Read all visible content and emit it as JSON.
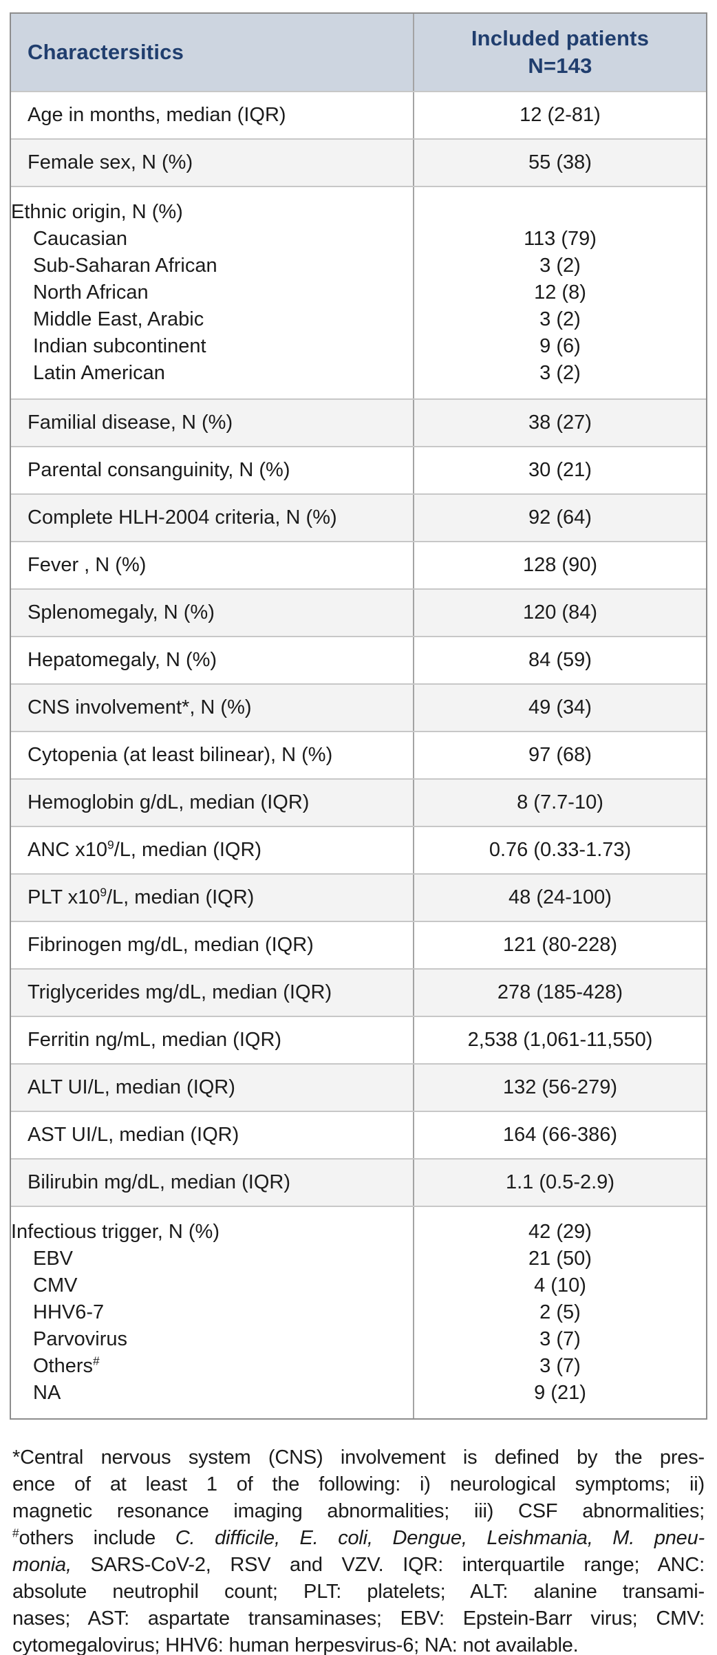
{
  "colors": {
    "header_bg": "#cdd5e0",
    "header_text": "#203e6e",
    "row_alt_bg": "#f3f3f3",
    "border_outer": "#8d8d8d",
    "border_row": "#c7c7c7",
    "border_divider": "#a3a3a3",
    "text": "#1b1b1b"
  },
  "header": {
    "col1": "Charactersitics",
    "col2_line1": "Included patients",
    "col2_line2": "N=143"
  },
  "table": {
    "rows": [
      {
        "lines": [
          {
            "label": [
              {
                "t": "Age in months, median (IQR)"
              }
            ],
            "value": "12 (2-81)",
            "indent": false
          }
        ]
      },
      {
        "lines": [
          {
            "label": [
              {
                "t": "Female sex, N (%)"
              }
            ],
            "value": "55 (38)",
            "indent": false
          }
        ]
      },
      {
        "lines": [
          {
            "label": [
              {
                "t": "Ethnic origin, N (%)"
              }
            ],
            "value": "",
            "indent": false
          },
          {
            "label": [
              {
                "t": "Caucasian"
              }
            ],
            "value": "113 (79)",
            "indent": true
          },
          {
            "label": [
              {
                "t": "Sub-Saharan African"
              }
            ],
            "value": "3 (2)",
            "indent": true
          },
          {
            "label": [
              {
                "t": "North African"
              }
            ],
            "value": "12 (8)",
            "indent": true
          },
          {
            "label": [
              {
                "t": "Middle East, Arabic"
              }
            ],
            "value": "3 (2)",
            "indent": true
          },
          {
            "label": [
              {
                "t": "Indian subcontinent"
              }
            ],
            "value": "9 (6)",
            "indent": true
          },
          {
            "label": [
              {
                "t": "Latin American"
              }
            ],
            "value": "3 (2)",
            "indent": true
          }
        ]
      },
      {
        "lines": [
          {
            "label": [
              {
                "t": "Familial disease, N (%)"
              }
            ],
            "value": "38 (27)",
            "indent": false
          }
        ]
      },
      {
        "lines": [
          {
            "label": [
              {
                "t": "Parental consanguinity, N (%)"
              }
            ],
            "value": "30 (21)",
            "indent": false
          }
        ]
      },
      {
        "lines": [
          {
            "label": [
              {
                "t": "Complete HLH-2004 criteria, N (%)"
              }
            ],
            "value": "92 (64)",
            "indent": false
          }
        ]
      },
      {
        "lines": [
          {
            "label": [
              {
                "t": "Fever , N (%)"
              }
            ],
            "value": "128 (90)",
            "indent": false
          }
        ]
      },
      {
        "lines": [
          {
            "label": [
              {
                "t": "Splenomegaly, N (%)"
              }
            ],
            "value": "120 (84)",
            "indent": false
          }
        ]
      },
      {
        "lines": [
          {
            "label": [
              {
                "t": "Hepatomegaly, N (%)"
              }
            ],
            "value": "84 (59)",
            "indent": false
          }
        ]
      },
      {
        "lines": [
          {
            "label": [
              {
                "t": "CNS involvement*, N (%)"
              }
            ],
            "value": "49 (34)",
            "indent": false
          }
        ]
      },
      {
        "lines": [
          {
            "label": [
              {
                "t": "Cytopenia (at least bilinear), N (%)"
              }
            ],
            "value": "97 (68)",
            "indent": false
          }
        ]
      },
      {
        "lines": [
          {
            "label": [
              {
                "t": "Hemoglobin g/dL, median (IQR)"
              }
            ],
            "value": "8 (7.7-10)",
            "indent": false
          }
        ]
      },
      {
        "lines": [
          {
            "label": [
              {
                "t": "ANC x10"
              },
              {
                "t": "9",
                "s": "sup"
              },
              {
                "t": "/L, median (IQR)"
              }
            ],
            "value": "0.76 (0.33-1.73)",
            "indent": false
          }
        ]
      },
      {
        "lines": [
          {
            "label": [
              {
                "t": "PLT x10"
              },
              {
                "t": "9",
                "s": "sup"
              },
              {
                "t": "/L, median (IQR)"
              }
            ],
            "value": "48 (24-100)",
            "indent": false
          }
        ]
      },
      {
        "lines": [
          {
            "label": [
              {
                "t": "Fibrinogen mg/dL, median (IQR)"
              }
            ],
            "value": "121 (80-228)",
            "indent": false
          }
        ]
      },
      {
        "lines": [
          {
            "label": [
              {
                "t": "Triglycerides mg/dL, median (IQR)"
              }
            ],
            "value": "278 (185-428)",
            "indent": false
          }
        ]
      },
      {
        "lines": [
          {
            "label": [
              {
                "t": "Ferritin ng/mL, median (IQR)"
              }
            ],
            "value": "2,538 (1,061-11,550)",
            "indent": false
          }
        ]
      },
      {
        "lines": [
          {
            "label": [
              {
                "t": "ALT UI/L, median (IQR)"
              }
            ],
            "value": "132 (56-279)",
            "indent": false
          }
        ]
      },
      {
        "lines": [
          {
            "label": [
              {
                "t": "AST UI/L, median (IQR)"
              }
            ],
            "value": "164 (66-386)",
            "indent": false
          }
        ]
      },
      {
        "lines": [
          {
            "label": [
              {
                "t": "Bilirubin mg/dL, median (IQR)"
              }
            ],
            "value": "1.1 (0.5-2.9)",
            "indent": false
          }
        ]
      },
      {
        "lines": [
          {
            "label": [
              {
                "t": "Infectious trigger, N (%)"
              }
            ],
            "value": "42 (29)",
            "indent": false
          },
          {
            "label": [
              {
                "t": "EBV"
              }
            ],
            "value": "21 (50)",
            "indent": true
          },
          {
            "label": [
              {
                "t": "CMV"
              }
            ],
            "value": "4 (10)",
            "indent": true
          },
          {
            "label": [
              {
                "t": "HHV6-7"
              }
            ],
            "value": "2 (5)",
            "indent": true
          },
          {
            "label": [
              {
                "t": "Parvovirus"
              }
            ],
            "value": "3 (7)",
            "indent": true
          },
          {
            "label": [
              {
                "t": "Others"
              },
              {
                "t": "#",
                "s": "sup"
              }
            ],
            "value": "3 (7)",
            "indent": true
          },
          {
            "label": [
              {
                "t": "NA"
              }
            ],
            "value": "9 (21)",
            "indent": true
          }
        ]
      }
    ]
  },
  "footnote": {
    "lines": [
      [
        {
          "t": "*Central nervous system (CNS) involvement is defined by the pres-"
        }
      ],
      [
        {
          "t": "ence of at least 1 of the following: i) neurological symptoms; ii)"
        }
      ],
      [
        {
          "t": "magnetic resonance imaging abnormalities; iii) CSF abnormalities;"
        }
      ],
      [
        {
          "t": "#",
          "s": "sup"
        },
        {
          "t": "others include "
        },
        {
          "t": "C. difficile, E. coli, Dengue, Leishmania, M. pneu-",
          "s": "i"
        }
      ],
      [
        {
          "t": "monia,",
          "s": "i"
        },
        {
          "t": " SARS-CoV-2, RSV and VZV. IQR: interquartile range; ANC:"
        }
      ],
      [
        {
          "t": "absolute neutrophil count; PLT: platelets; ALT: alanine transami-"
        }
      ],
      [
        {
          "t": "nases; AST: aspartate transaminases; EBV: Epstein-Barr virus; CMV:"
        }
      ],
      [
        {
          "t": "cytomegalovirus; HHV6: human herpesvirus-6; NA: not available."
        }
      ]
    ]
  }
}
